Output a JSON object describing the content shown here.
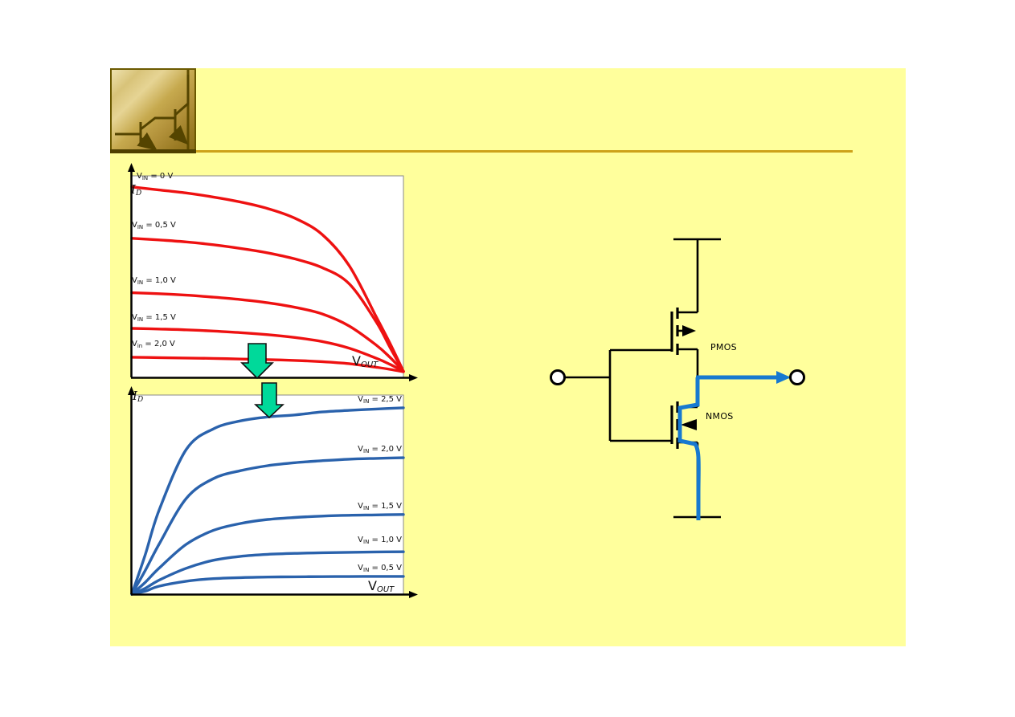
{
  "slide": {
    "bg_color": "#FFFF9C",
    "accent_line_color": "#CDA21A",
    "title_text": ""
  },
  "logo": {
    "icon": "transistor-logo"
  },
  "chart_data": [
    {
      "type": "line",
      "device": "pmos",
      "color": "#EE1111",
      "title": "",
      "xlabel": "VOUT",
      "ylabel": "ID",
      "xlabel_parts": {
        "prefix": "V",
        "sub": "OUT"
      },
      "ylabel_parts": {
        "prefix": "I",
        "sub": "D"
      },
      "axes_numeric": false,
      "value_scale": "normalized 0-1 (axes carry no numeric ticks in the figure)",
      "legend_position": "labels at left end of each curve",
      "series": [
        {
          "name": "VIN = 0 V",
          "label_parts": {
            "prefix": "V",
            "sub": "IN",
            "rest": "= 0 V"
          },
          "points": [
            [
              0,
              0.945
            ],
            [
              0.1,
              0.93
            ],
            [
              0.2,
              0.915
            ],
            [
              0.3,
              0.895
            ],
            [
              0.4,
              0.87
            ],
            [
              0.5,
              0.838
            ],
            [
              0.6,
              0.79
            ],
            [
              0.7,
              0.71
            ],
            [
              0.8,
              0.555
            ],
            [
              0.9,
              0.3
            ],
            [
              0.95,
              0.17
            ],
            [
              1,
              0.03
            ]
          ]
        },
        {
          "name": "VIN = 0,5 V",
          "label_parts": {
            "prefix": "V",
            "sub": "IN",
            "rest": "= 0,5 V"
          },
          "points": [
            [
              0,
              0.69
            ],
            [
              0.1,
              0.682
            ],
            [
              0.2,
              0.672
            ],
            [
              0.3,
              0.658
            ],
            [
              0.4,
              0.64
            ],
            [
              0.5,
              0.618
            ],
            [
              0.6,
              0.588
            ],
            [
              0.7,
              0.545
            ],
            [
              0.8,
              0.465
            ],
            [
              0.9,
              0.275
            ],
            [
              0.95,
              0.15
            ],
            [
              1,
              0.03
            ]
          ]
        },
        {
          "name": "VIN = 1,0 V",
          "label_parts": {
            "prefix": "V",
            "sub": "IN",
            "rest": "= 1,0 V"
          },
          "points": [
            [
              0,
              0.42
            ],
            [
              0.1,
              0.415
            ],
            [
              0.2,
              0.408
            ],
            [
              0.3,
              0.398
            ],
            [
              0.4,
              0.386
            ],
            [
              0.5,
              0.37
            ],
            [
              0.6,
              0.348
            ],
            [
              0.7,
              0.315
            ],
            [
              0.8,
              0.255
            ],
            [
              0.9,
              0.16
            ],
            [
              0.95,
              0.1
            ],
            [
              1,
              0.03
            ]
          ]
        },
        {
          "name": "VIN = 1,5 V",
          "label_parts": {
            "prefix": "V",
            "sub": "IN",
            "rest": "= 1,5 V"
          },
          "points": [
            [
              0,
              0.243
            ],
            [
              0.1,
              0.24
            ],
            [
              0.2,
              0.236
            ],
            [
              0.3,
              0.23
            ],
            [
              0.4,
              0.222
            ],
            [
              0.5,
              0.212
            ],
            [
              0.6,
              0.198
            ],
            [
              0.7,
              0.178
            ],
            [
              0.8,
              0.145
            ],
            [
              0.9,
              0.095
            ],
            [
              0.95,
              0.065
            ],
            [
              1,
              0.03
            ]
          ]
        },
        {
          "name": "Vin = 2,0 V",
          "label_parts": {
            "prefix": "V",
            "sub": "in",
            "rest": "= 2,0 V"
          },
          "points": [
            [
              0,
              0.1
            ],
            [
              0.1,
              0.098
            ],
            [
              0.2,
              0.096
            ],
            [
              0.3,
              0.094
            ],
            [
              0.4,
              0.091
            ],
            [
              0.5,
              0.088
            ],
            [
              0.6,
              0.084
            ],
            [
              0.7,
              0.078
            ],
            [
              0.8,
              0.068
            ],
            [
              0.9,
              0.05
            ],
            [
              0.95,
              0.04
            ],
            [
              1,
              0.028
            ]
          ]
        }
      ]
    },
    {
      "type": "line",
      "device": "nmos",
      "color": "#2A62AC",
      "title": "",
      "xlabel": "VOUT",
      "ylabel": "ID",
      "xlabel_parts": {
        "prefix": "V",
        "sub": "OUT"
      },
      "ylabel_parts": {
        "prefix": "I",
        "sub": "D"
      },
      "axes_numeric": false,
      "value_scale": "normalized 0-1 (axes carry no numeric ticks in the figure)",
      "legend_position": "labels at right end of each curve",
      "series": [
        {
          "name": "VIN = 2,5 V",
          "label_parts": {
            "prefix": "V",
            "sub": "IN",
            "rest": "= 2,5 V"
          },
          "points": [
            [
              0,
              0
            ],
            [
              0.05,
              0.2
            ],
            [
              0.1,
              0.42
            ],
            [
              0.2,
              0.726
            ],
            [
              0.3,
              0.83
            ],
            [
              0.4,
              0.87
            ],
            [
              0.5,
              0.89
            ],
            [
              0.6,
              0.9
            ],
            [
              0.7,
              0.915
            ],
            [
              0.8,
              0.923
            ],
            [
              0.9,
              0.93
            ],
            [
              1,
              0.936
            ]
          ]
        },
        {
          "name": "VIN = 2,0 V",
          "label_parts": {
            "prefix": "V",
            "sub": "IN",
            "rest": "= 2,0 V"
          },
          "points": [
            [
              0,
              0
            ],
            [
              0.05,
              0.12
            ],
            [
              0.1,
              0.25
            ],
            [
              0.2,
              0.48
            ],
            [
              0.3,
              0.58
            ],
            [
              0.4,
              0.62
            ],
            [
              0.5,
              0.645
            ],
            [
              0.6,
              0.66
            ],
            [
              0.7,
              0.67
            ],
            [
              0.8,
              0.678
            ],
            [
              0.9,
              0.682
            ],
            [
              1,
              0.685
            ]
          ]
        },
        {
          "name": "VIN = 1,5 V",
          "label_parts": {
            "prefix": "V",
            "sub": "IN",
            "rest": "= 1,5 V"
          },
          "points": [
            [
              0,
              0
            ],
            [
              0.05,
              0.06
            ],
            [
              0.1,
              0.13
            ],
            [
              0.2,
              0.25
            ],
            [
              0.3,
              0.32
            ],
            [
              0.4,
              0.355
            ],
            [
              0.5,
              0.375
            ],
            [
              0.6,
              0.385
            ],
            [
              0.7,
              0.392
            ],
            [
              0.8,
              0.396
            ],
            [
              0.9,
              0.398
            ],
            [
              1,
              0.4
            ]
          ]
        },
        {
          "name": "VIN = 1,0 V",
          "label_parts": {
            "prefix": "V",
            "sub": "IN",
            "rest": "= 1,0 V"
          },
          "points": [
            [
              0,
              0
            ],
            [
              0.05,
              0.03
            ],
            [
              0.1,
              0.07
            ],
            [
              0.2,
              0.13
            ],
            [
              0.3,
              0.17
            ],
            [
              0.4,
              0.19
            ],
            [
              0.5,
              0.2
            ],
            [
              0.6,
              0.205
            ],
            [
              0.7,
              0.208
            ],
            [
              0.8,
              0.21
            ],
            [
              0.9,
              0.212
            ],
            [
              1,
              0.213
            ]
          ]
        },
        {
          "name": "VIN = 0,5 V",
          "label_parts": {
            "prefix": "V",
            "sub": "IN",
            "rest": "= 0,5 V"
          },
          "points": [
            [
              0,
              0
            ],
            [
              0.05,
              0.015
            ],
            [
              0.1,
              0.04
            ],
            [
              0.2,
              0.065
            ],
            [
              0.3,
              0.078
            ],
            [
              0.4,
              0.083
            ],
            [
              0.5,
              0.086
            ],
            [
              0.6,
              0.087
            ],
            [
              0.7,
              0.088
            ],
            [
              0.8,
              0.0885
            ],
            [
              0.9,
              0.089
            ],
            [
              1,
              0.089
            ]
          ]
        }
      ]
    }
  ],
  "transition_arrows": {
    "icon": "green-down-arrow",
    "color": "#00D99A",
    "count": 2
  },
  "circuit": {
    "pmos_label": "PMOS",
    "nmos_label": "NMOS",
    "wire_color": "#000000",
    "highlight_color": "#1779D0",
    "icons": {
      "input": "input-terminal-circle",
      "output": "output-terminal-circle",
      "output_arrow": "blue-right-arrow"
    }
  }
}
